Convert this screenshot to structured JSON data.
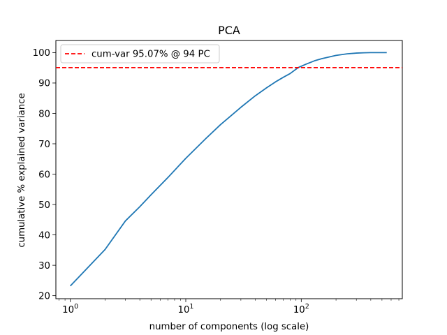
{
  "chart_data": {
    "type": "line",
    "title": "PCA",
    "xlabel": "number of components (log scale)",
    "ylabel": "cumulative % explained variance",
    "x_scale": "log",
    "xlim": [
      0.75,
      750
    ],
    "ylim": [
      19,
      104
    ],
    "grid": false,
    "legend_placement": "top-left",
    "x_ticks": [
      {
        "base": "10",
        "exp": "0",
        "value": 1
      },
      {
        "base": "10",
        "exp": "1",
        "value": 10
      },
      {
        "base": "10",
        "exp": "2",
        "value": 100
      }
    ],
    "y_ticks": [
      20,
      30,
      40,
      50,
      60,
      70,
      80,
      90,
      100
    ],
    "series": [
      {
        "color": "#1f77b4",
        "x": [
          1,
          2,
          3,
          4,
          5,
          7,
          10,
          15,
          20,
          30,
          40,
          50,
          60,
          70,
          80,
          94,
          110,
          130,
          150,
          200,
          250,
          300,
          350,
          400,
          450,
          500,
          550
        ],
        "y": [
          23.2,
          35.2,
          44.6,
          49.3,
          53.2,
          58.9,
          65.2,
          71.8,
          76.3,
          82.0,
          85.8,
          88.4,
          90.4,
          91.9,
          93.1,
          95.07,
          96.2,
          97.3,
          98.0,
          99.1,
          99.6,
          99.85,
          99.95,
          100.0,
          100.0,
          100.0,
          100.0
        ]
      }
    ],
    "reference_line": {
      "orientation": "horizontal",
      "y": 95.07,
      "color": "#ff0000",
      "style": "dashed",
      "legend_label": "cum-var 95.07% @ 94 PC"
    }
  }
}
